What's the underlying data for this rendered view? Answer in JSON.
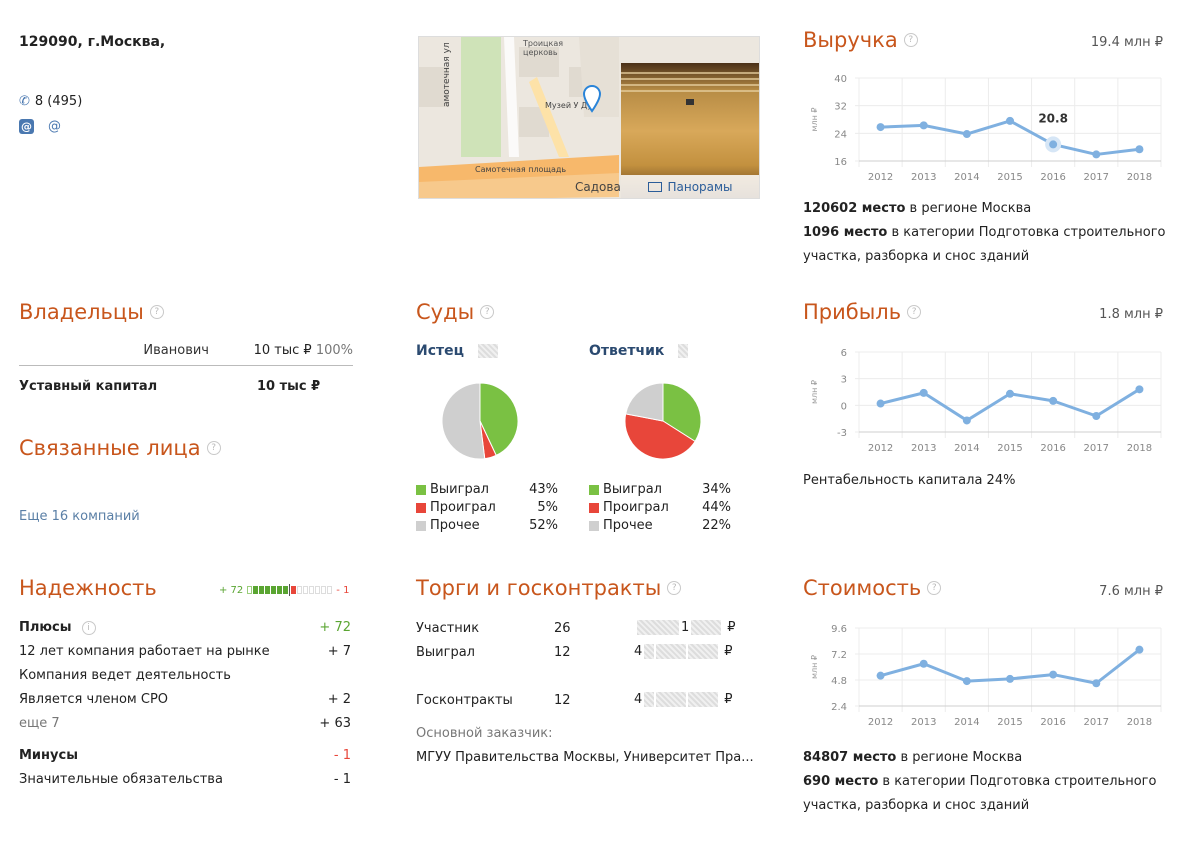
{
  "contacts": {
    "address": "129090, г.Москва,",
    "phone": "8 (495)",
    "email_glyph": "@",
    "web_glyph": "@"
  },
  "map": {
    "labels": [
      "Троицкая церковь",
      "амотечная ул",
      "Музей У Ду",
      "Самотечная площадь",
      "Садова"
    ],
    "panorama_label": "Панорамы"
  },
  "revenue": {
    "title": "Выручка",
    "total": "19.4 млн ₽",
    "rank_region_num": "120602 место",
    "rank_region_text": " в регионе Москва",
    "rank_cat_num": "1096 место",
    "rank_cat_text": " в категории Подготовка строительного",
    "rank_cat_text2": "участка, разборка и снос зданий"
  },
  "owners": {
    "title": "Владельцы",
    "owner_name": "Иванович",
    "owner_share": "10 тыс ₽",
    "owner_percent": "100%",
    "capital_label": "Уставный капитал",
    "capital_value": "10 тыс ₽"
  },
  "related": {
    "title": "Связанные лица",
    "more_link": "Еще 16 компаний"
  },
  "courts": {
    "title": "Суды",
    "plaintiff": {
      "title": "Истец",
      "items": [
        {
          "label": "Выиграл",
          "pct": "43%",
          "value": 43,
          "color": "#7ac143"
        },
        {
          "label": "Проиграл",
          "pct": "5%",
          "value": 5,
          "color": "#e8463a"
        },
        {
          "label": "Прочее",
          "pct": "52%",
          "value": 52,
          "color": "#cfcfcf"
        }
      ]
    },
    "defendant": {
      "title": "Ответчик",
      "items": [
        {
          "label": "Выиграл",
          "pct": "34%",
          "value": 34,
          "color": "#7ac143"
        },
        {
          "label": "Проиграл",
          "pct": "44%",
          "value": 44,
          "color": "#e8463a"
        },
        {
          "label": "Прочее",
          "pct": "22%",
          "value": 22,
          "color": "#cfcfcf"
        }
      ]
    }
  },
  "profit": {
    "title": "Прибыль",
    "total": "1.8 млн ₽",
    "roe": "Рентабельность капитала 24%"
  },
  "reliability": {
    "title": "Надежность",
    "score_plus": "+ 72",
    "score_minus": "- 1",
    "plus_title": "Плюсы",
    "plus_total": "+ 72",
    "plus_items": [
      {
        "label": "12 лет компания работает на рынке",
        "value": "+ 7"
      },
      {
        "label": "Компания ведет деятельность",
        "value": ""
      },
      {
        "label": "Является членом СРО",
        "value": "+ 2"
      }
    ],
    "more_label": "еще 7",
    "more_value": "+ 63",
    "minus_title": "Минусы",
    "minus_total": "- 1",
    "minus_items": [
      {
        "label": "Значительные обязательства",
        "value": "- 1"
      }
    ]
  },
  "tenders": {
    "title": "Торги и госконтракты",
    "participant_label": "Участник",
    "participant_count": "26",
    "participant_sum_digit": "1",
    "won_label": "Выиграл",
    "won_count": "12",
    "won_sum_digit": "4",
    "contracts_label": "Госконтракты",
    "contracts_count": "12",
    "contracts_sum_digit": "4",
    "currency": "₽",
    "customer_label": "Основной заказчик:",
    "customer_value": "МГУУ Правительства Москвы, Университет Пра..."
  },
  "value": {
    "title": "Стоимость",
    "total": "7.6 млн ₽",
    "rank_region_num": "84807 место",
    "rank_region_text": " в регионе Москва",
    "rank_cat_num": "690 место",
    "rank_cat_text": " в категории Подготовка строительного",
    "rank_cat_text2": "участка, разборка и снос зданий"
  },
  "chart_data": [
    {
      "id": "revenue",
      "type": "line",
      "x": [
        "2012",
        "2013",
        "2014",
        "2015",
        "2016",
        "2017",
        "2018"
      ],
      "values": [
        25.8,
        26.3,
        23.8,
        27.6,
        20.8,
        17.9,
        19.4
      ],
      "ylabel": "млн ₽",
      "yticks": [
        16,
        24,
        32,
        40
      ],
      "ylim": [
        16,
        40
      ],
      "highlight_index": 4,
      "highlight_label": "20.8",
      "color": "#7fb0e0"
    },
    {
      "id": "profit",
      "type": "line",
      "x": [
        "2012",
        "2013",
        "2014",
        "2015",
        "2016",
        "2017",
        "2018"
      ],
      "values": [
        0.2,
        1.4,
        -1.7,
        1.3,
        0.5,
        -1.2,
        1.8
      ],
      "ylabel": "млн ₽",
      "yticks": [
        -3,
        0,
        3,
        6
      ],
      "ylim": [
        -3,
        6
      ],
      "color": "#7fb0e0"
    },
    {
      "id": "value",
      "type": "line",
      "x": [
        "2012",
        "2013",
        "2014",
        "2015",
        "2016",
        "2017",
        "2018"
      ],
      "values": [
        5.2,
        6.3,
        4.7,
        4.9,
        5.3,
        4.5,
        7.6
      ],
      "ylabel": "млн ₽",
      "yticks": [
        2.4,
        4.8,
        7.2,
        9.6
      ],
      "ylim": [
        2.4,
        9.6
      ],
      "color": "#7fb0e0"
    }
  ]
}
